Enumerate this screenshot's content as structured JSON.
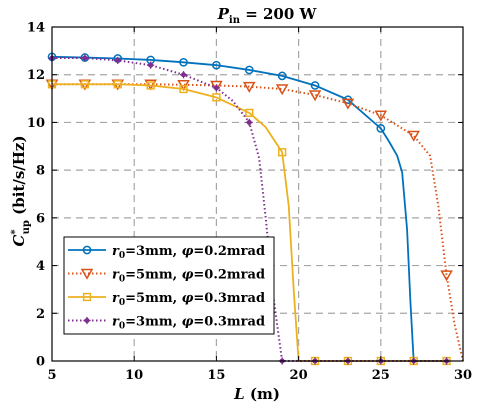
{
  "chart_data": {
    "type": "line",
    "title": "P_in = 200 W",
    "title_parts": {
      "main": "P",
      "sub": "in",
      "rest": " = 200 W"
    },
    "xlabel": "L (m)",
    "ylabel": "C*_up (bit/s/Hz)",
    "xlabel_parts": {
      "var": "L",
      "unit": " (m)"
    },
    "ylabel_parts": {
      "var": "C",
      "sup": "*",
      "sub": "up",
      "unit": " (bit/s/Hz)"
    },
    "xlim": [
      5,
      30
    ],
    "ylim": [
      0,
      14
    ],
    "xticks": [
      5,
      10,
      15,
      20,
      25,
      30
    ],
    "yticks": [
      0,
      2,
      4,
      6,
      8,
      10,
      12,
      14
    ],
    "grid": true,
    "legend_position": "bottom-left",
    "series": [
      {
        "name": "r0=3mm, φ=0.2mrad",
        "label_parts": {
          "var": "r",
          "sub": "0",
          "rest": "=3mm, ",
          "phi": "φ",
          "end": "=0.2mrad"
        },
        "color": "#0072BD",
        "line_style": "solid",
        "marker": "circle",
        "x": [
          5,
          7,
          9,
          11,
          13,
          15,
          17,
          19,
          21,
          23,
          25,
          25.5,
          26,
          26.3,
          26.6,
          26.8,
          27,
          29
        ],
        "y": [
          12.75,
          12.72,
          12.68,
          12.62,
          12.52,
          12.4,
          12.2,
          11.95,
          11.55,
          10.95,
          9.75,
          9.2,
          8.6,
          7.9,
          5.5,
          2.5,
          0,
          0
        ],
        "markers_x": [
          5,
          7,
          9,
          11,
          13,
          15,
          17,
          19,
          21,
          23,
          25
        ]
      },
      {
        "name": "r0=5mm, φ=0.2mrad",
        "label_parts": {
          "var": "r",
          "sub": "0",
          "rest": "=5mm, ",
          "phi": "φ",
          "end": "=0.2mrad"
        },
        "color": "#D95319",
        "line_style": "dotted",
        "marker": "triangle-down",
        "x": [
          5,
          7,
          9,
          11,
          13,
          15,
          17,
          19,
          21,
          23,
          25,
          27,
          28,
          28.5,
          29,
          29.5,
          30
        ],
        "y": [
          11.6,
          11.6,
          11.6,
          11.6,
          11.58,
          11.55,
          11.5,
          11.4,
          11.15,
          10.8,
          10.3,
          9.45,
          8.6,
          6.5,
          3.6,
          1.5,
          0
        ],
        "markers_x": [
          5,
          7,
          9,
          11,
          13,
          15,
          17,
          19,
          21,
          23,
          25,
          27,
          29
        ]
      },
      {
        "name": "r0=5mm, φ=0.3mrad",
        "label_parts": {
          "var": "r",
          "sub": "0",
          "rest": "=5mm, ",
          "phi": "φ",
          "end": "=0.3mrad"
        },
        "color": "#EDB120",
        "line_style": "solid",
        "marker": "square",
        "x": [
          5,
          7,
          9,
          11,
          13,
          15,
          17,
          18,
          19,
          19.4,
          19.7,
          20,
          21,
          23,
          25,
          27,
          29
        ],
        "y": [
          11.6,
          11.6,
          11.6,
          11.55,
          11.4,
          11.05,
          10.4,
          9.8,
          8.75,
          6.5,
          3.0,
          0,
          0,
          0,
          0,
          0,
          0
        ],
        "markers_x": [
          5,
          7,
          9,
          11,
          13,
          15,
          17,
          19,
          21,
          23,
          25,
          27,
          29
        ]
      },
      {
        "name": "r0=3mm, φ=0.3mrad",
        "label_parts": {
          "var": "r",
          "sub": "0",
          "rest": "=3mm, ",
          "phi": "φ",
          "end": "=0.3mrad"
        },
        "color": "#7E2F8E",
        "line_style": "dotted",
        "marker": "asterisk",
        "x": [
          5,
          7,
          9,
          11,
          13,
          15,
          16,
          17,
          17.6,
          18,
          18.5,
          19,
          21,
          23,
          25,
          27,
          29
        ],
        "y": [
          12.7,
          12.7,
          12.6,
          12.4,
          12.0,
          11.45,
          10.9,
          10.0,
          8.5,
          6.0,
          2.5,
          0,
          0,
          0,
          0,
          0,
          0
        ],
        "markers_x": [
          5,
          7,
          9,
          11,
          13,
          15,
          17,
          19,
          21,
          23,
          25,
          27,
          29
        ]
      }
    ]
  }
}
